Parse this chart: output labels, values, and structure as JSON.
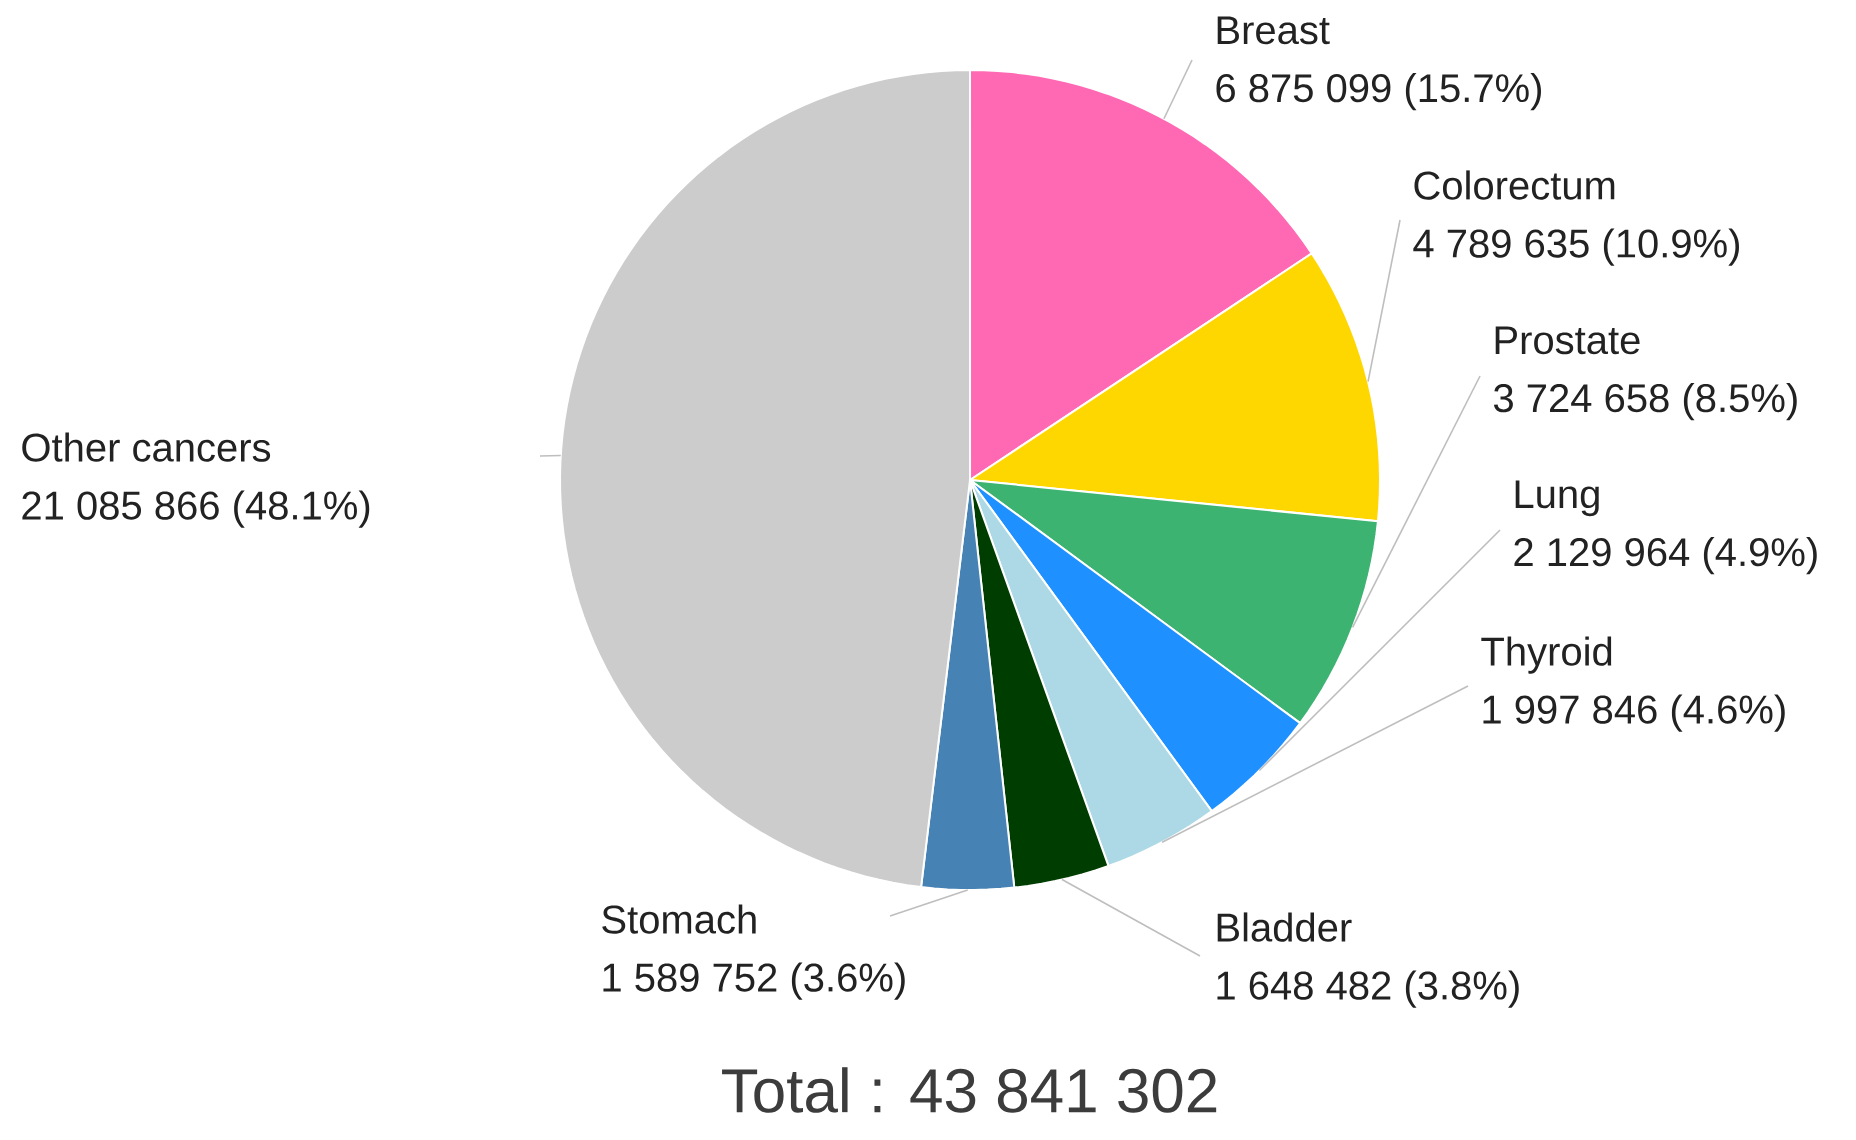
{
  "chart_data": {
    "type": "pie",
    "categories": [
      "Breast",
      "Colorectum",
      "Prostate",
      "Lung",
      "Thyroid",
      "Bladder",
      "Stomach",
      "Other cancers"
    ],
    "values": [
      6875099,
      4789635,
      3724658,
      2129964,
      1997846,
      1648482,
      1589752,
      21085866
    ],
    "value_labels": [
      "6 875 099 (15.7%)",
      "4 789 635 (10.9%)",
      "3 724 658 (8.5%)",
      "2 129 964 (4.9%)",
      "1 997 846 (4.6%)",
      "1 648 482 (3.8%)",
      "1 589 752 (3.6%)",
      "21 085 866 (48.1%)"
    ],
    "colors": [
      "#ff69b4",
      "#ffd700",
      "#3cb371",
      "#1e90ff",
      "#add8e6",
      "#003d00",
      "#4682b4",
      "#cccccc"
    ],
    "annotations": [
      "Total : 43 841 302"
    ]
  }
}
